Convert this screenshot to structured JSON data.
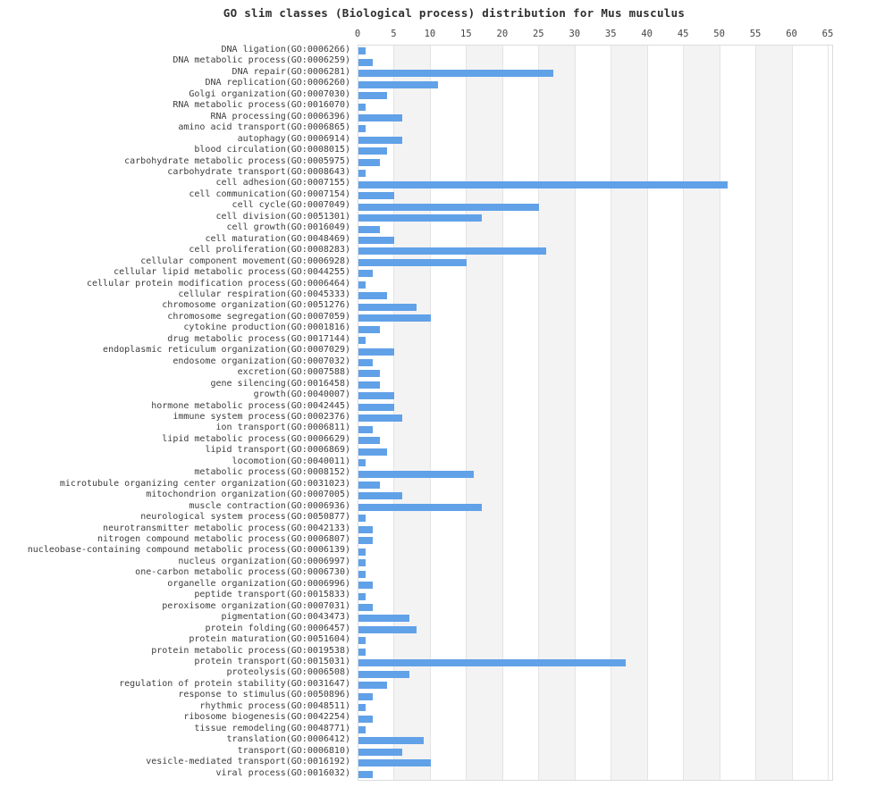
{
  "chart_data": {
    "type": "bar",
    "orientation": "horizontal",
    "title": "GO slim classes (Biological process) distribution for Mus musculus",
    "xlabel": "",
    "ylabel": "",
    "xlim": [
      0,
      65
    ],
    "x_ticks": [
      0,
      5,
      10,
      15,
      20,
      25,
      30,
      35,
      40,
      45,
      50,
      55,
      60,
      65
    ],
    "grid": "alternating vertical bands every 5 units, light gridlines at ticks",
    "legend": "none",
    "categories": [
      "DNA ligation(GO:0006266)",
      "DNA metabolic process(GO:0006259)",
      "DNA repair(GO:0006281)",
      "DNA replication(GO:0006260)",
      "Golgi organization(GO:0007030)",
      "RNA metabolic process(GO:0016070)",
      "RNA processing(GO:0006396)",
      "amino acid transport(GO:0006865)",
      "autophagy(GO:0006914)",
      "blood circulation(GO:0008015)",
      "carbohydrate metabolic process(GO:0005975)",
      "carbohydrate transport(GO:0008643)",
      "cell adhesion(GO:0007155)",
      "cell communication(GO:0007154)",
      "cell cycle(GO:0007049)",
      "cell division(GO:0051301)",
      "cell growth(GO:0016049)",
      "cell maturation(GO:0048469)",
      "cell proliferation(GO:0008283)",
      "cellular component movement(GO:0006928)",
      "cellular lipid metabolic process(GO:0044255)",
      "cellular protein modification process(GO:0006464)",
      "cellular respiration(GO:0045333)",
      "chromosome organization(GO:0051276)",
      "chromosome segregation(GO:0007059)",
      "cytokine production(GO:0001816)",
      "drug metabolic process(GO:0017144)",
      "endoplasmic reticulum organization(GO:0007029)",
      "endosome organization(GO:0007032)",
      "excretion(GO:0007588)",
      "gene silencing(GO:0016458)",
      "growth(GO:0040007)",
      "hormone metabolic process(GO:0042445)",
      "immune system process(GO:0002376)",
      "ion transport(GO:0006811)",
      "lipid metabolic process(GO:0006629)",
      "lipid transport(GO:0006869)",
      "locomotion(GO:0040011)",
      "metabolic process(GO:0008152)",
      "microtubule organizing center organization(GO:0031023)",
      "mitochondrion organization(GO:0007005)",
      "muscle contraction(GO:0006936)",
      "neurological system process(GO:0050877)",
      "neurotransmitter metabolic process(GO:0042133)",
      "nitrogen compound metabolic process(GO:0006807)",
      "nucleobase-containing compound metabolic process(GO:0006139)",
      "nucleus organization(GO:0006997)",
      "one-carbon metabolic process(GO:0006730)",
      "organelle organization(GO:0006996)",
      "peptide transport(GO:0015833)",
      "peroxisome organization(GO:0007031)",
      "pigmentation(GO:0043473)",
      "protein folding(GO:0006457)",
      "protein maturation(GO:0051604)",
      "protein metabolic process(GO:0019538)",
      "protein transport(GO:0015031)",
      "proteolysis(GO:0006508)",
      "regulation of protein stability(GO:0031647)",
      "response to stimulus(GO:0050896)",
      "rhythmic process(GO:0048511)",
      "ribosome biogenesis(GO:0042254)",
      "tissue remodeling(GO:0048771)",
      "translation(GO:0006412)",
      "transport(GO:0006810)",
      "vesicle-mediated transport(GO:0016192)",
      "viral process(GO:0016032)"
    ],
    "values": [
      1,
      2,
      27,
      11,
      4,
      1,
      6,
      1,
      6,
      4,
      3,
      1,
      51,
      5,
      25,
      17,
      3,
      5,
      26,
      15,
      2,
      1,
      4,
      8,
      10,
      3,
      1,
      5,
      2,
      3,
      3,
      5,
      5,
      6,
      2,
      3,
      4,
      1,
      16,
      3,
      6,
      17,
      1,
      2,
      2,
      1,
      1,
      1,
      2,
      1,
      2,
      7,
      8,
      1,
      1,
      37,
      7,
      4,
      2,
      1,
      2,
      1,
      9,
      6,
      10,
      2
    ]
  },
  "colors": {
    "bar": "#61a1e8",
    "band_gray": "#f3f3f3",
    "gridline": "#e4e4e4",
    "plot_border": "#dcdcdc",
    "title_text": "#2f2f2f",
    "label_text": "#3d3d3d",
    "tick_text": "#444444"
  }
}
